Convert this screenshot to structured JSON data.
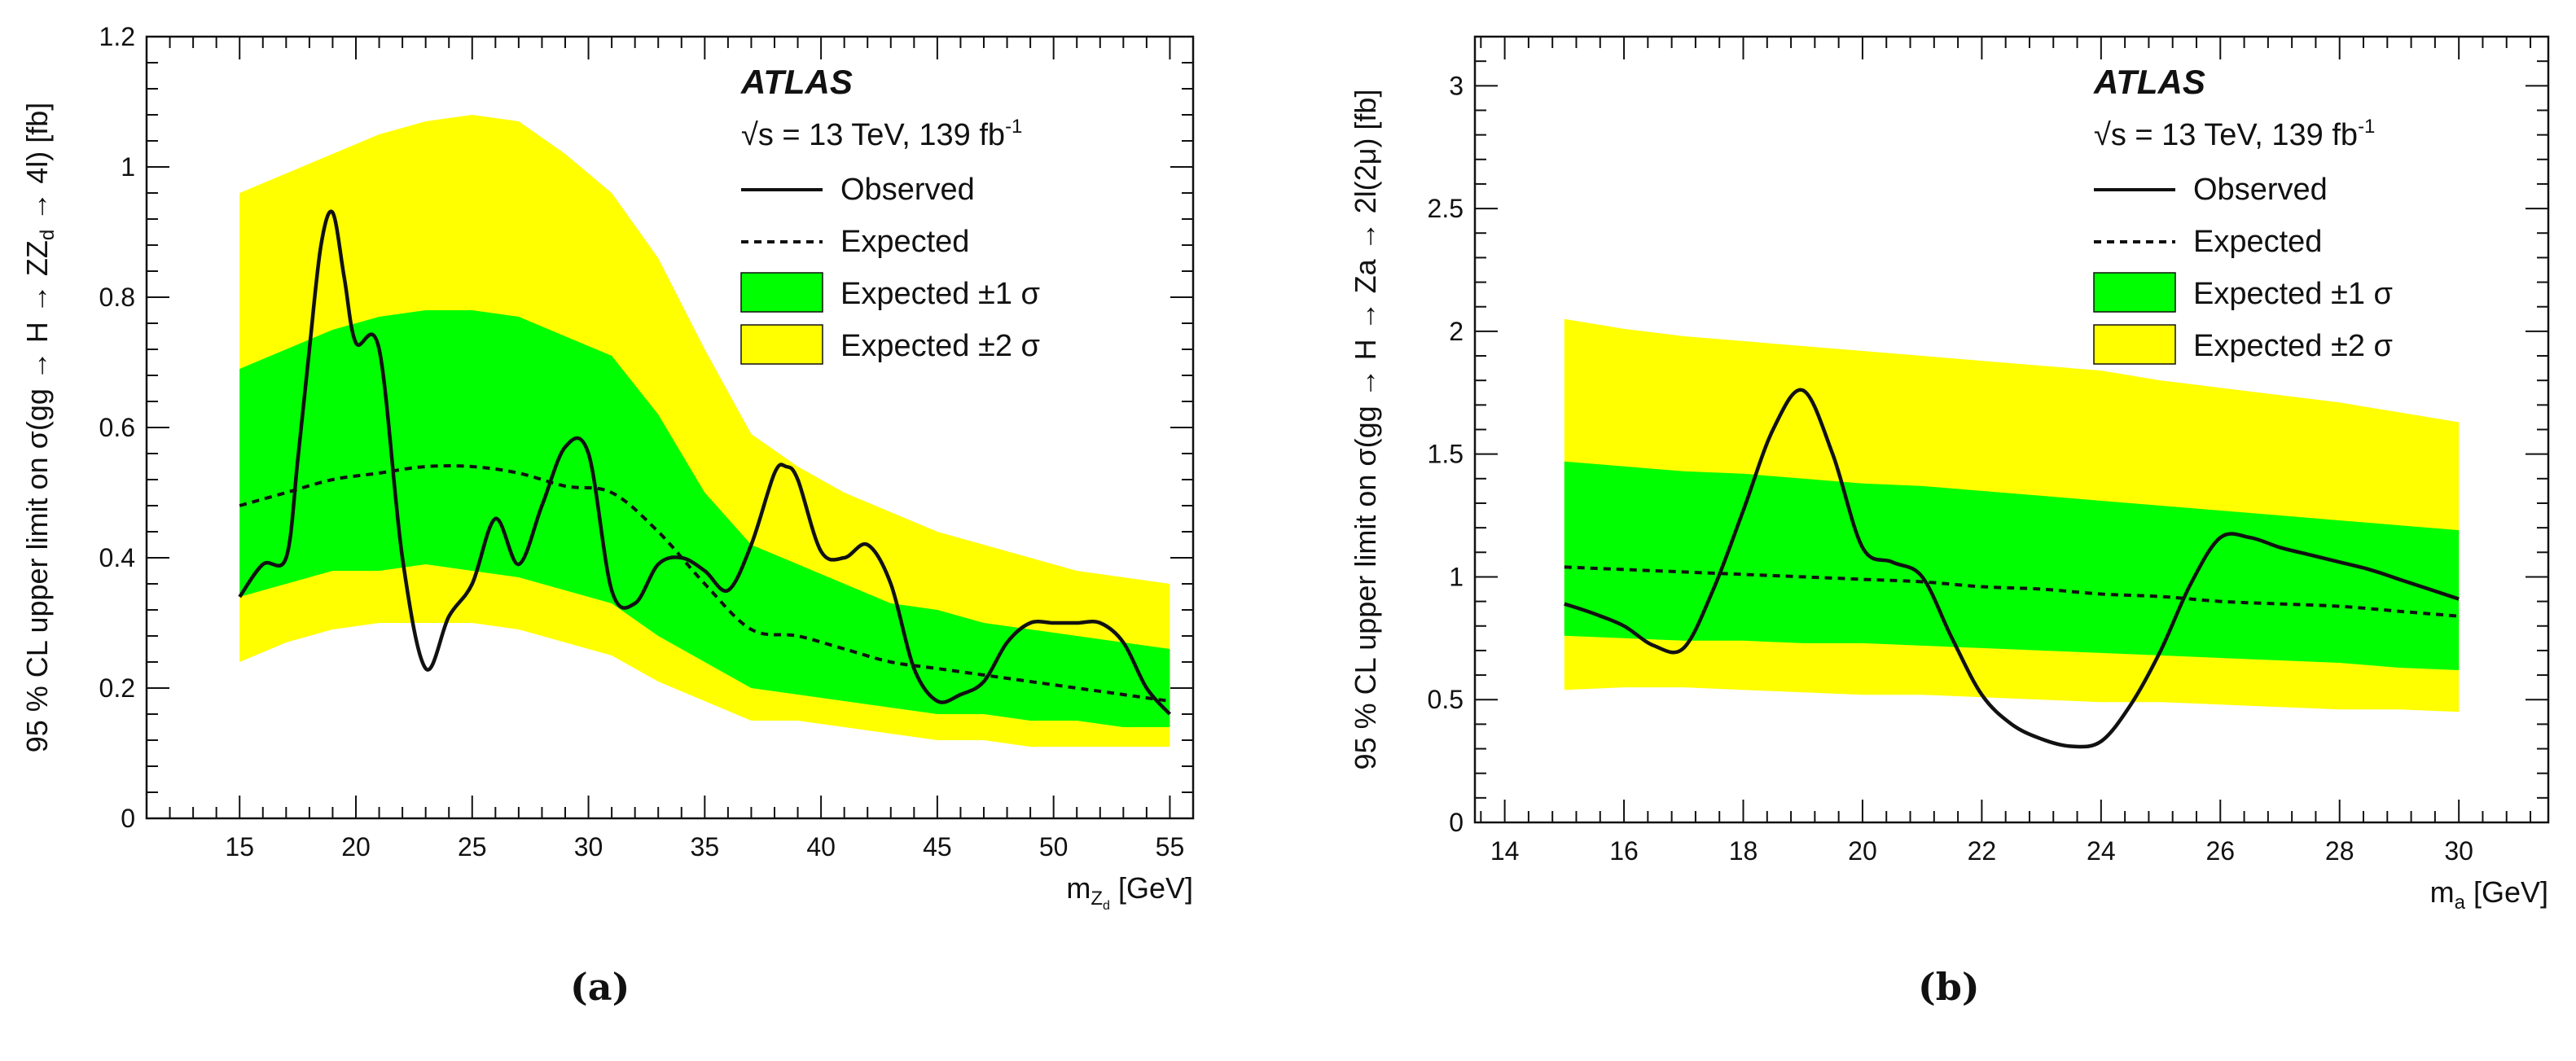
{
  "figure": {
    "caption_a": "(a)",
    "caption_b": "(b)"
  },
  "colors": {
    "band1": "#00ff00",
    "band2": "#ffff00",
    "line": "#111111"
  },
  "chart_data": [
    {
      "type": "line",
      "panel": "a",
      "atlas_label": "ATLAS",
      "energy_label": "√s = 13 TeV, 139 fb",
      "energy_superscript": "-1",
      "legend": {
        "observed": "Observed",
        "expected": "Expected",
        "band1": "Expected ±1 σ",
        "band2": "Expected ±2 σ",
        "position": "top-right"
      },
      "xlabel": {
        "main": "m",
        "sub1": "Z",
        "sub2": "d",
        "unit": "[GeV]"
      },
      "ylabel": {
        "text": "95 % CL upper limit on σ(gg → H → ZZ",
        "sub": "d",
        "tail": " → 4l) [fb]"
      },
      "xlim": [
        11,
        56
      ],
      "ylim": [
        0,
        1.2
      ],
      "xticks": [
        15,
        20,
        25,
        30,
        35,
        40,
        45,
        50,
        55
      ],
      "yticks": [
        0,
        0.2,
        0.4,
        0.6,
        0.8,
        1,
        1.2
      ],
      "ytick_labels": [
        "0",
        "0.2",
        "0.4",
        "0.6",
        "0.8",
        "1",
        "1.2"
      ],
      "x": [
        15,
        17,
        19,
        21,
        23,
        25,
        27,
        29,
        31,
        33,
        35,
        37,
        39,
        41,
        43,
        45,
        47,
        49,
        51,
        53,
        55
      ],
      "expected": [
        0.48,
        0.5,
        0.52,
        0.53,
        0.54,
        0.54,
        0.53,
        0.51,
        0.5,
        0.44,
        0.36,
        0.29,
        0.28,
        0.26,
        0.24,
        0.23,
        0.22,
        0.21,
        0.2,
        0.19,
        0.18
      ],
      "band1_low": [
        0.34,
        0.36,
        0.38,
        0.38,
        0.39,
        0.38,
        0.37,
        0.35,
        0.33,
        0.28,
        0.24,
        0.2,
        0.19,
        0.18,
        0.17,
        0.16,
        0.16,
        0.15,
        0.15,
        0.14,
        0.14
      ],
      "band1_high": [
        0.69,
        0.72,
        0.75,
        0.77,
        0.78,
        0.78,
        0.77,
        0.74,
        0.71,
        0.62,
        0.5,
        0.42,
        0.39,
        0.36,
        0.33,
        0.32,
        0.3,
        0.29,
        0.28,
        0.27,
        0.26
      ],
      "band2_low": [
        0.24,
        0.27,
        0.29,
        0.3,
        0.3,
        0.3,
        0.29,
        0.27,
        0.25,
        0.21,
        0.18,
        0.15,
        0.15,
        0.14,
        0.13,
        0.12,
        0.12,
        0.11,
        0.11,
        0.11,
        0.11
      ],
      "band2_high": [
        0.96,
        0.99,
        1.02,
        1.05,
        1.07,
        1.08,
        1.07,
        1.02,
        0.96,
        0.86,
        0.72,
        0.59,
        0.54,
        0.5,
        0.47,
        0.44,
        0.42,
        0.4,
        0.38,
        0.37,
        0.36
      ],
      "observed_x": [
        15,
        16,
        17,
        17.5,
        18,
        18.5,
        19,
        19.5,
        20,
        21,
        22,
        23,
        24,
        25,
        26,
        27,
        28,
        29,
        30,
        31,
        32,
        33,
        34,
        35,
        36,
        37,
        38,
        38.5,
        39,
        40,
        41,
        42,
        43,
        44,
        45,
        46,
        47,
        48,
        49,
        50,
        51,
        52,
        53,
        54,
        55
      ],
      "observed": [
        0.34,
        0.39,
        0.4,
        0.55,
        0.72,
        0.88,
        0.93,
        0.83,
        0.73,
        0.72,
        0.4,
        0.23,
        0.31,
        0.36,
        0.46,
        0.39,
        0.48,
        0.57,
        0.56,
        0.35,
        0.33,
        0.39,
        0.4,
        0.38,
        0.35,
        0.42,
        0.53,
        0.54,
        0.52,
        0.41,
        0.4,
        0.42,
        0.36,
        0.23,
        0.18,
        0.19,
        0.21,
        0.27,
        0.3,
        0.3,
        0.3,
        0.3,
        0.27,
        0.2,
        0.16
      ]
    },
    {
      "type": "line",
      "panel": "b",
      "atlas_label": "ATLAS",
      "energy_label": "√s = 13 TeV, 139 fb",
      "energy_superscript": "-1",
      "legend": {
        "observed": "Observed",
        "expected": "Expected",
        "band1": "Expected ±1 σ",
        "band2": "Expected ±2 σ",
        "position": "top-right"
      },
      "xlabel": {
        "main": "m",
        "sub1": "a",
        "sub2": "",
        "unit": "[GeV]"
      },
      "ylabel": {
        "text": "95 % CL upper limit on σ(gg → H → Za → 2l(2μ) [fb]",
        "sub": "",
        "tail": ""
      },
      "xlim": [
        13.5,
        31.5
      ],
      "ylim": [
        0,
        3.2
      ],
      "xticks": [
        14,
        16,
        18,
        20,
        22,
        24,
        26,
        28,
        30
      ],
      "yticks": [
        0,
        0.5,
        1,
        1.5,
        2,
        2.5,
        3
      ],
      "ytick_labels": [
        "0",
        "0.5",
        "1",
        "1.5",
        "2",
        "2.5",
        "3"
      ],
      "x": [
        15,
        16,
        17,
        18,
        19,
        20,
        21,
        22,
        23,
        24,
        25,
        26,
        27,
        28,
        29,
        30
      ],
      "expected": [
        1.04,
        1.03,
        1.02,
        1.01,
        1.0,
        0.99,
        0.98,
        0.96,
        0.95,
        0.93,
        0.92,
        0.9,
        0.89,
        0.88,
        0.86,
        0.84
      ],
      "band1_low": [
        0.76,
        0.75,
        0.74,
        0.74,
        0.73,
        0.73,
        0.72,
        0.71,
        0.7,
        0.69,
        0.68,
        0.67,
        0.66,
        0.65,
        0.63,
        0.62
      ],
      "band1_high": [
        1.47,
        1.45,
        1.43,
        1.42,
        1.4,
        1.38,
        1.37,
        1.35,
        1.33,
        1.31,
        1.29,
        1.27,
        1.25,
        1.23,
        1.21,
        1.19
      ],
      "band2_low": [
        0.54,
        0.55,
        0.55,
        0.54,
        0.53,
        0.52,
        0.52,
        0.51,
        0.5,
        0.49,
        0.49,
        0.48,
        0.47,
        0.46,
        0.46,
        0.45
      ],
      "band2_high": [
        2.05,
        2.01,
        1.98,
        1.96,
        1.94,
        1.92,
        1.9,
        1.88,
        1.86,
        1.84,
        1.8,
        1.77,
        1.74,
        1.71,
        1.67,
        1.63
      ],
      "observed_x": [
        15,
        15.5,
        16,
        16.5,
        17,
        17.5,
        18,
        18.5,
        19,
        19.5,
        20,
        20.5,
        21,
        21.5,
        22,
        22.5,
        23,
        23.5,
        24,
        24.5,
        25,
        25.5,
        26,
        26.5,
        27,
        27.5,
        28,
        28.5,
        29,
        29.5,
        30
      ],
      "observed": [
        0.89,
        0.85,
        0.8,
        0.72,
        0.71,
        0.95,
        1.27,
        1.6,
        1.76,
        1.5,
        1.12,
        1.06,
        1.0,
        0.75,
        0.52,
        0.4,
        0.34,
        0.31,
        0.33,
        0.48,
        0.7,
        0.97,
        1.16,
        1.16,
        1.12,
        1.09,
        1.06,
        1.03,
        0.99,
        0.95,
        0.91
      ]
    }
  ]
}
